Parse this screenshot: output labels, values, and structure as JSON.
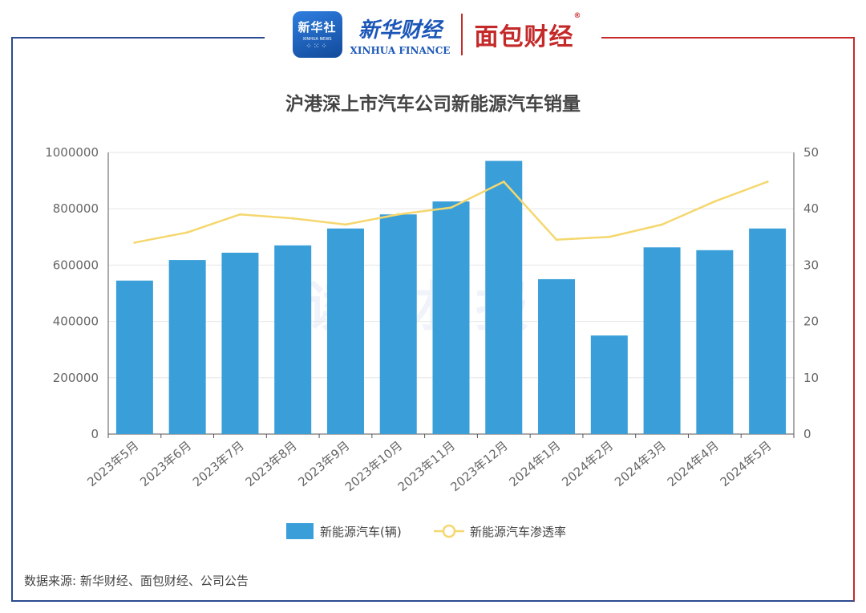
{
  "header": {
    "xinhua_logo_cn": "新华社",
    "xinhua_logo_en": "XINHUA NEWS",
    "xinhua_finance_cn": "新华财经",
    "xinhua_finance_en": "XINHUA FINANCE",
    "mianbao_cn": "面包财经",
    "registered_mark": "®"
  },
  "watermark": "读财报",
  "source": "数据来源: 新华财经、面包财经、公司公告",
  "colors": {
    "bar": "#3a9fd9",
    "line": "#f5d76e",
    "frame_left": "#2b4a8f",
    "frame_right": "#c42a2a",
    "grid": "#e6e6e6"
  },
  "chart_data": {
    "type": "bar",
    "title": "沪港深上市汽车公司新能源汽车销量",
    "categories": [
      "2023年5月",
      "2023年6月",
      "2023年7月",
      "2023年8月",
      "2023年9月",
      "2023年10月",
      "2023年11月",
      "2023年12月",
      "2024年1月",
      "2024年2月",
      "2024年3月",
      "2024年4月",
      "2024年5月"
    ],
    "series": [
      {
        "name": "新能源汽车(辆)",
        "type": "bar",
        "axis": "left",
        "values": [
          545000,
          618000,
          644000,
          670000,
          730000,
          780000,
          826000,
          970000,
          550000,
          350000,
          663000,
          653000,
          730000
        ]
      },
      {
        "name": "新能源汽车渗透率",
        "type": "line",
        "axis": "right",
        "values": [
          34.0,
          35.8,
          39.0,
          38.3,
          37.2,
          39.0,
          40.2,
          44.8,
          34.5,
          35.0,
          37.2,
          41.3,
          44.8
        ]
      }
    ],
    "ylim_left": [
      0,
      1000000
    ],
    "yticks_left": [
      "0",
      "200000",
      "400000",
      "600000",
      "800000",
      "1000000"
    ],
    "ylim_right": [
      0,
      50
    ],
    "yticks_right": [
      "0",
      "10",
      "20",
      "30",
      "40",
      "50"
    ],
    "grid": true,
    "legend_position": "bottom"
  }
}
